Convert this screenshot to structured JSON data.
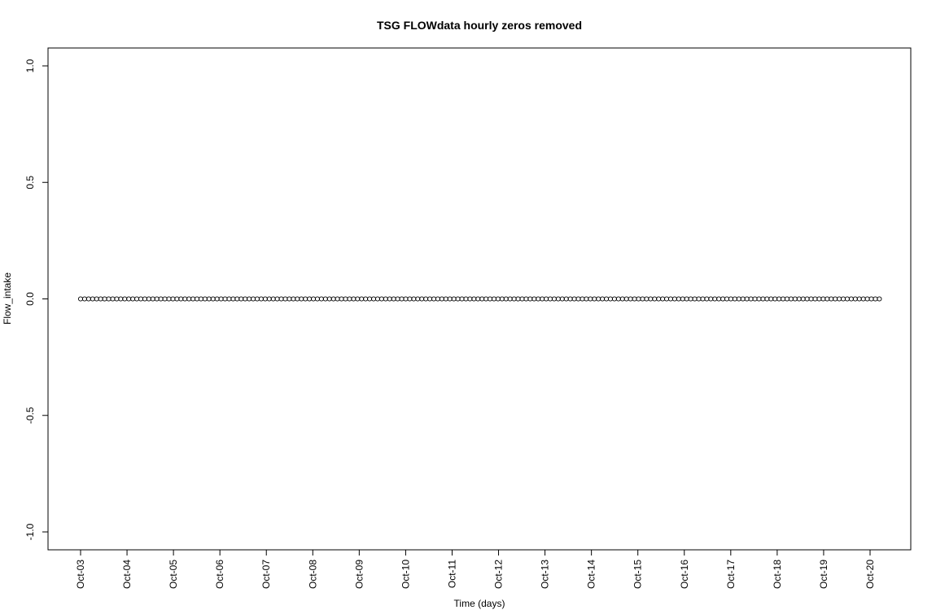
{
  "chart_data": {
    "type": "scatter",
    "title": "TSG FLOWdata hourly zeros removed",
    "xlabel": "Time (days)",
    "ylabel": "Flow_intake",
    "ylim": [
      -1.0,
      1.0
    ],
    "y_ticks": [
      -1.0,
      -0.5,
      0.0,
      0.5,
      1.0
    ],
    "y_tick_labels": [
      "-1.0",
      "-0.5",
      "0.0",
      "0.5",
      "1.0"
    ],
    "x_ticks": [
      0,
      1,
      2,
      3,
      4,
      5,
      6,
      7,
      8,
      9,
      10,
      11,
      12,
      13,
      14,
      15,
      16,
      17
    ],
    "x_tick_labels": [
      "Oct-03",
      "Oct-04",
      "Oct-05",
      "Oct-06",
      "Oct-07",
      "Oct-08",
      "Oct-09",
      "Oct-10",
      "Oct-11",
      "Oct-12",
      "Oct-13",
      "Oct-14",
      "Oct-15",
      "Oct-16",
      "Oct-17",
      "Oct-18",
      "Oct-19",
      "Oct-20"
    ],
    "xlim": [
      -0.65,
      17.85
    ],
    "series": [
      {
        "x_start": 0.0,
        "x_end": 17.2,
        "count": 200,
        "y": 0.0
      }
    ],
    "grid": false,
    "marker": "open-circle",
    "color": "#000000"
  }
}
